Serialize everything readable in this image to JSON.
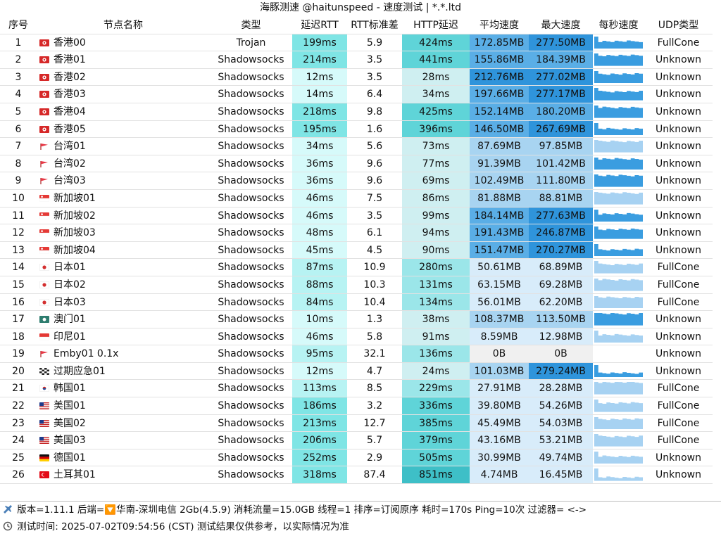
{
  "title": "海豚测速 @haitunspeed - 速度测试 | *.*.ltd",
  "headers": [
    "序号",
    "节点名称",
    "类型",
    "延迟RTT",
    "RTT标准差",
    "HTTP延迟",
    "平均速度",
    "最大速度",
    "每秒速度",
    "UDP类型"
  ],
  "colors": {
    "rtt_light": "#d6fafa",
    "rtt_mid": "#b7f3f3",
    "rtt_strong": "#7fe5e5",
    "http_light": "#cfeff1",
    "http_mid": "#9be6e9",
    "http_strong": "#5fd4d8",
    "http_max": "#3ebfc7",
    "avg_light": "#d8ecfa",
    "avg_mid": "#a8d4f1",
    "avg_strong": "#5aaee6",
    "avg_max": "#2f94db",
    "zero": "#f0f0f0",
    "spark": "#3a9de0",
    "spark_light": "#a7d2f2"
  },
  "rows": [
    {
      "idx": "1",
      "flag": "hk",
      "name": "香港00",
      "type": "Trojan",
      "rtt": "199ms",
      "rtt_std": "5.9",
      "http": "424ms",
      "avg": "172.85MB",
      "max": "277.50MB",
      "udp": "FullCone"
    },
    {
      "idx": "2",
      "flag": "hk",
      "name": "香港01",
      "type": "Shadowsocks",
      "rtt": "214ms",
      "rtt_std": "3.5",
      "http": "441ms",
      "avg": "155.86MB",
      "max": "184.39MB",
      "udp": "Unknown"
    },
    {
      "idx": "3",
      "flag": "hk",
      "name": "香港02",
      "type": "Shadowsocks",
      "rtt": "12ms",
      "rtt_std": "3.5",
      "http": "28ms",
      "avg": "212.76MB",
      "max": "277.02MB",
      "udp": "Unknown"
    },
    {
      "idx": "4",
      "flag": "hk",
      "name": "香港03",
      "type": "Shadowsocks",
      "rtt": "14ms",
      "rtt_std": "6.4",
      "http": "34ms",
      "avg": "197.66MB",
      "max": "277.17MB",
      "udp": "Unknown"
    },
    {
      "idx": "5",
      "flag": "hk",
      "name": "香港04",
      "type": "Shadowsocks",
      "rtt": "218ms",
      "rtt_std": "9.8",
      "http": "425ms",
      "avg": "152.14MB",
      "max": "180.20MB",
      "udp": "Unknown"
    },
    {
      "idx": "6",
      "flag": "hk",
      "name": "香港05",
      "type": "Shadowsocks",
      "rtt": "195ms",
      "rtt_std": "1.6",
      "http": "396ms",
      "avg": "146.50MB",
      "max": "267.69MB",
      "udp": "Unknown"
    },
    {
      "idx": "7",
      "flag": "tw",
      "name": "台湾01",
      "type": "Shadowsocks",
      "rtt": "34ms",
      "rtt_std": "5.6",
      "http": "73ms",
      "avg": "87.69MB",
      "max": "97.85MB",
      "udp": "Unknown"
    },
    {
      "idx": "8",
      "flag": "tw",
      "name": "台湾02",
      "type": "Shadowsocks",
      "rtt": "36ms",
      "rtt_std": "9.6",
      "http": "77ms",
      "avg": "91.39MB",
      "max": "101.42MB",
      "udp": "Unknown"
    },
    {
      "idx": "9",
      "flag": "tw",
      "name": "台湾03",
      "type": "Shadowsocks",
      "rtt": "36ms",
      "rtt_std": "9.6",
      "http": "69ms",
      "avg": "102.49MB",
      "max": "111.80MB",
      "udp": "Unknown"
    },
    {
      "idx": "10",
      "flag": "sg",
      "name": "新加坡01",
      "type": "Shadowsocks",
      "rtt": "46ms",
      "rtt_std": "7.5",
      "http": "86ms",
      "avg": "81.88MB",
      "max": "88.81MB",
      "udp": "Unknown"
    },
    {
      "idx": "11",
      "flag": "sg",
      "name": "新加坡02",
      "type": "Shadowsocks",
      "rtt": "46ms",
      "rtt_std": "3.5",
      "http": "99ms",
      "avg": "184.14MB",
      "max": "277.63MB",
      "udp": "Unknown"
    },
    {
      "idx": "12",
      "flag": "sg",
      "name": "新加坡03",
      "type": "Shadowsocks",
      "rtt": "48ms",
      "rtt_std": "6.1",
      "http": "94ms",
      "avg": "191.43MB",
      "max": "246.87MB",
      "udp": "Unknown"
    },
    {
      "idx": "13",
      "flag": "sg",
      "name": "新加坡04",
      "type": "Shadowsocks",
      "rtt": "45ms",
      "rtt_std": "4.5",
      "http": "90ms",
      "avg": "151.47MB",
      "max": "270.27MB",
      "udp": "Unknown"
    },
    {
      "idx": "14",
      "flag": "jp",
      "name": "日本01",
      "type": "Shadowsocks",
      "rtt": "87ms",
      "rtt_std": "10.9",
      "http": "280ms",
      "avg": "50.61MB",
      "max": "68.89MB",
      "udp": "FullCone"
    },
    {
      "idx": "15",
      "flag": "jp",
      "name": "日本02",
      "type": "Shadowsocks",
      "rtt": "88ms",
      "rtt_std": "10.3",
      "http": "131ms",
      "avg": "63.15MB",
      "max": "69.28MB",
      "udp": "FullCone"
    },
    {
      "idx": "16",
      "flag": "jp",
      "name": "日本03",
      "type": "Shadowsocks",
      "rtt": "84ms",
      "rtt_std": "10.4",
      "http": "134ms",
      "avg": "56.01MB",
      "max": "62.20MB",
      "udp": "FullCone"
    },
    {
      "idx": "17",
      "flag": "mo",
      "name": "澳门01",
      "type": "Shadowsocks",
      "rtt": "10ms",
      "rtt_std": "1.3",
      "http": "38ms",
      "avg": "108.37MB",
      "max": "113.50MB",
      "udp": "Unknown"
    },
    {
      "idx": "18",
      "flag": "id",
      "name": "印尼01",
      "type": "Shadowsocks",
      "rtt": "46ms",
      "rtt_std": "5.8",
      "http": "91ms",
      "avg": "8.59MB",
      "max": "12.98MB",
      "udp": "Unknown"
    },
    {
      "idx": "19",
      "flag": "tw",
      "name": "Emby01 0.1x",
      "type": "Shadowsocks",
      "rtt": "95ms",
      "rtt_std": "32.1",
      "http": "136ms",
      "avg": "0B",
      "max": "0B",
      "udp": "Unknown"
    },
    {
      "idx": "20",
      "flag": "chk",
      "name": "过期应急01",
      "type": "Shadowsocks",
      "rtt": "12ms",
      "rtt_std": "4.7",
      "http": "24ms",
      "avg": "101.03MB",
      "max": "279.24MB",
      "udp": "Unknown"
    },
    {
      "idx": "21",
      "flag": "kr",
      "name": "韩国01",
      "type": "Shadowsocks",
      "rtt": "113ms",
      "rtt_std": "8.5",
      "http": "229ms",
      "avg": "27.91MB",
      "max": "28.28MB",
      "udp": "FullCone"
    },
    {
      "idx": "22",
      "flag": "us",
      "name": "美国01",
      "type": "Shadowsocks",
      "rtt": "186ms",
      "rtt_std": "3.2",
      "http": "336ms",
      "avg": "39.80MB",
      "max": "54.26MB",
      "udp": "FullCone"
    },
    {
      "idx": "23",
      "flag": "us",
      "name": "美国02",
      "type": "Shadowsocks",
      "rtt": "213ms",
      "rtt_std": "12.7",
      "http": "385ms",
      "avg": "45.49MB",
      "max": "54.03MB",
      "udp": "FullCone"
    },
    {
      "idx": "24",
      "flag": "us",
      "name": "美国03",
      "type": "Shadowsocks",
      "rtt": "206ms",
      "rtt_std": "5.7",
      "http": "379ms",
      "avg": "43.16MB",
      "max": "53.21MB",
      "udp": "FullCone"
    },
    {
      "idx": "25",
      "flag": "de",
      "name": "德国01",
      "type": "Shadowsocks",
      "rtt": "252ms",
      "rtt_std": "2.9",
      "http": "505ms",
      "avg": "30.99MB",
      "max": "49.74MB",
      "udp": "Unknown"
    },
    {
      "idx": "26",
      "flag": "tr",
      "name": "土耳其01",
      "type": "Shadowsocks",
      "rtt": "318ms",
      "rtt_std": "87.4",
      "http": "851ms",
      "avg": "4.74MB",
      "max": "16.45MB",
      "udp": "Unknown"
    }
  ],
  "footer": {
    "line1": "版本=1.11.1  后端=🔽华南-深圳电信 2Gb(4.5.9) 消耗流量=15.0GB  线程=1  排序=订阅原序  耗时=170s  Ping=10次  过滤器= <->",
    "line2": "测试时间: 2025-07-02T09:54:56 (CST)  测试结果仅供参考，以实际情况为准"
  }
}
